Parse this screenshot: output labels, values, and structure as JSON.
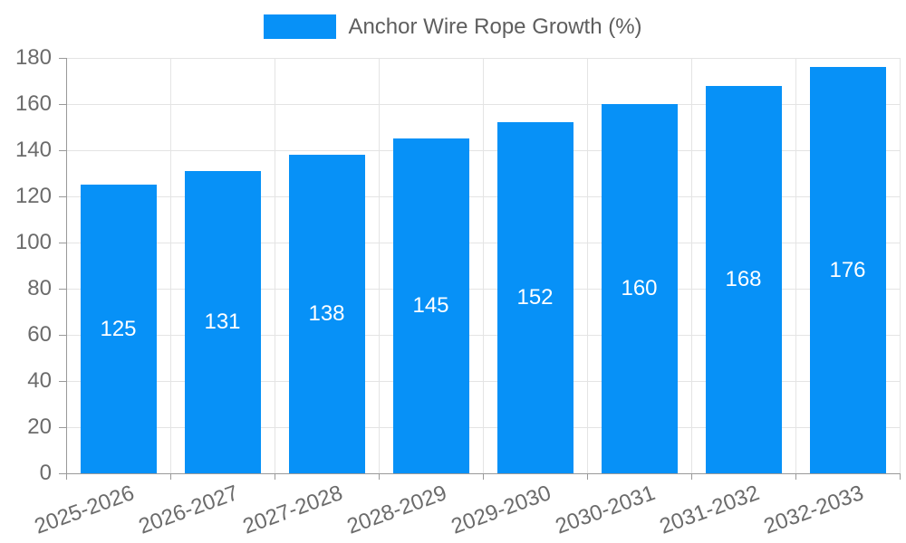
{
  "legend": {
    "label": "Anchor Wire Rope Growth (%)"
  },
  "colors": {
    "bar": "#0791f7",
    "grid": "#e4e4e4",
    "axis": "#9a9a9a",
    "tick_text": "#6b6b6b",
    "legend_text": "#5e5e5e",
    "value_label": "#ffffff",
    "background": "#ffffff"
  },
  "chart_data": {
    "type": "bar",
    "title": "Anchor Wire Rope Growth (%)",
    "categories": [
      "2025-2026",
      "2026-2027",
      "2027-2028",
      "2028-2029",
      "2029-2030",
      "2030-2031",
      "2031-2032",
      "2032-2033"
    ],
    "series": [
      {
        "name": "Anchor Wire Rope Growth (%)",
        "values": [
          125,
          131,
          138,
          145,
          152,
          160,
          168,
          176
        ]
      }
    ],
    "xlabel": "",
    "ylabel": "",
    "ylim": [
      0,
      180
    ],
    "yticks": [
      0,
      20,
      40,
      60,
      80,
      100,
      120,
      140,
      160,
      180
    ],
    "grid": true,
    "legend_position": "top",
    "bar_label_position": "inside-center",
    "x_label_rotation_deg": -20
  }
}
